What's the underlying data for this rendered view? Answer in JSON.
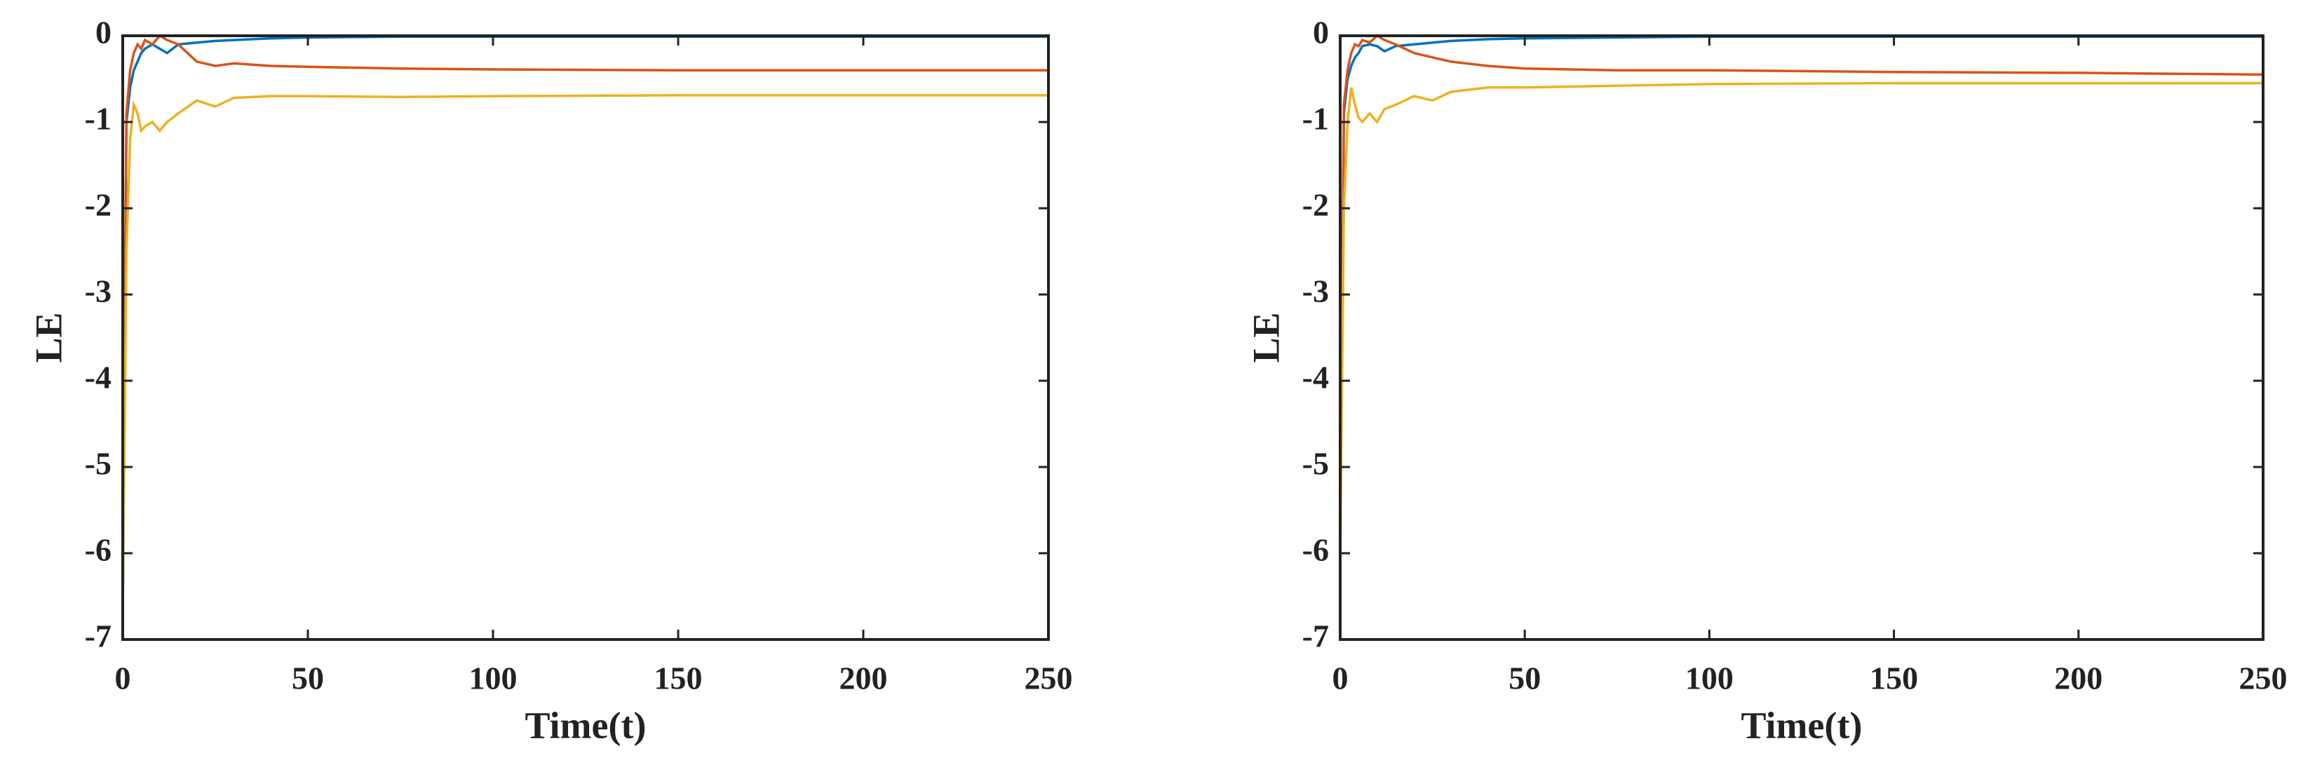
{
  "chart_data": [
    {
      "type": "line",
      "xlabel": "Time(t)",
      "ylabel": "LE",
      "x": [
        0,
        1,
        2,
        3,
        4,
        5,
        6,
        8,
        10,
        12,
        15,
        20,
        25,
        30,
        40,
        50,
        75,
        100,
        150,
        200,
        250
      ],
      "series": [
        {
          "color": "#0072BD",
          "values": [
            -6.7,
            -1.0,
            -0.6,
            -0.4,
            -0.3,
            -0.2,
            -0.15,
            -0.1,
            -0.15,
            -0.2,
            -0.1,
            -0.08,
            -0.06,
            -0.05,
            -0.03,
            -0.02,
            -0.01,
            -0.01,
            -0.01,
            -0.01,
            -0.01
          ]
        },
        {
          "color": "#D95319",
          "values": [
            -6.5,
            -0.9,
            -0.4,
            -0.2,
            -0.1,
            -0.15,
            -0.05,
            -0.1,
            0,
            -0.05,
            -0.1,
            -0.3,
            -0.35,
            -0.32,
            -0.35,
            -0.36,
            -0.38,
            -0.39,
            -0.4,
            -0.4,
            -0.4
          ]
        },
        {
          "color": "#EDB120",
          "values": [
            -6.7,
            -2.5,
            -1.2,
            -0.8,
            -0.9,
            -1.1,
            -1.05,
            -1.0,
            -1.1,
            -1.0,
            -0.9,
            -0.75,
            -0.82,
            -0.72,
            -0.7,
            -0.7,
            -0.71,
            -0.7,
            -0.69,
            -0.69,
            -0.69
          ]
        }
      ],
      "xlim": [
        0,
        250
      ],
      "xticks": [
        0,
        50,
        100,
        150,
        200,
        250
      ],
      "ylim": [
        -7,
        0
      ],
      "yticks": [
        -7,
        -6,
        -5,
        -4,
        -3,
        -2,
        -1,
        0
      ]
    },
    {
      "type": "line",
      "xlabel": "Time(t)",
      "ylabel": "LE",
      "x": [
        0,
        1,
        2,
        3,
        4,
        5,
        6,
        8,
        10,
        12,
        15,
        20,
        25,
        30,
        40,
        50,
        75,
        100,
        150,
        200,
        250
      ],
      "series": [
        {
          "color": "#0072BD",
          "values": [
            -6.0,
            -0.9,
            -0.5,
            -0.35,
            -0.25,
            -0.2,
            -0.12,
            -0.1,
            -0.12,
            -0.18,
            -0.12,
            -0.1,
            -0.08,
            -0.06,
            -0.04,
            -0.03,
            -0.02,
            -0.01,
            -0.01,
            -0.01,
            -0.01
          ]
        },
        {
          "color": "#D95319",
          "values": [
            -5.9,
            -0.8,
            -0.4,
            -0.2,
            -0.1,
            -0.12,
            -0.05,
            -0.08,
            0,
            -0.05,
            -0.1,
            -0.2,
            -0.25,
            -0.3,
            -0.35,
            -0.38,
            -0.4,
            -0.4,
            -0.42,
            -0.43,
            -0.45
          ]
        },
        {
          "color": "#EDB120",
          "values": [
            -6.1,
            -2.0,
            -1.0,
            -0.6,
            -0.8,
            -0.95,
            -1.0,
            -0.9,
            -1.0,
            -0.85,
            -0.8,
            -0.7,
            -0.75,
            -0.65,
            -0.6,
            -0.6,
            -0.58,
            -0.56,
            -0.55,
            -0.55,
            -0.55
          ]
        }
      ],
      "xlim": [
        0,
        250
      ],
      "xticks": [
        0,
        50,
        100,
        150,
        200,
        250
      ],
      "ylim": [
        -7,
        0
      ],
      "yticks": [
        -7,
        -6,
        -5,
        -4,
        -3,
        -2,
        -1,
        0
      ]
    }
  ]
}
